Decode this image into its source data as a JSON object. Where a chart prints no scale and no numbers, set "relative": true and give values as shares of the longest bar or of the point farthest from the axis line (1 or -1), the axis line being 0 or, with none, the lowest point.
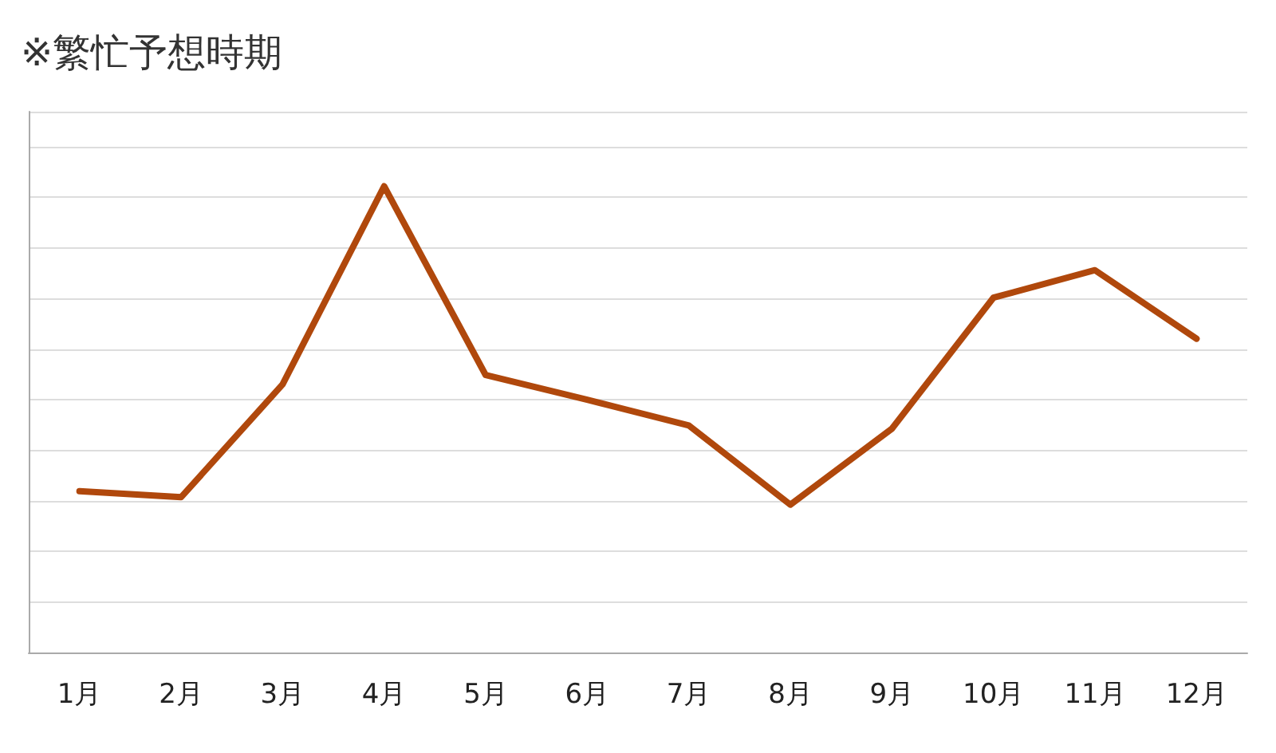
{
  "chart_data": {
    "type": "line",
    "title": "※繁忙予想時期",
    "categories": [
      "1月",
      "2月",
      "3月",
      "4月",
      "5月",
      "6月",
      "7月",
      "8月",
      "9月",
      "10月",
      "11月",
      "12月"
    ],
    "series": [
      {
        "color": "#b0480c",
        "values": [
          0.346,
          0.333,
          0.575,
          1,
          0.595,
          0.542,
          0.487,
          0.317,
          0.48,
          0.761,
          0.82,
          0.673
        ]
      }
    ],
    "relative": true,
    "grid": "y",
    "marker": "none",
    "line_style": "solid"
  }
}
